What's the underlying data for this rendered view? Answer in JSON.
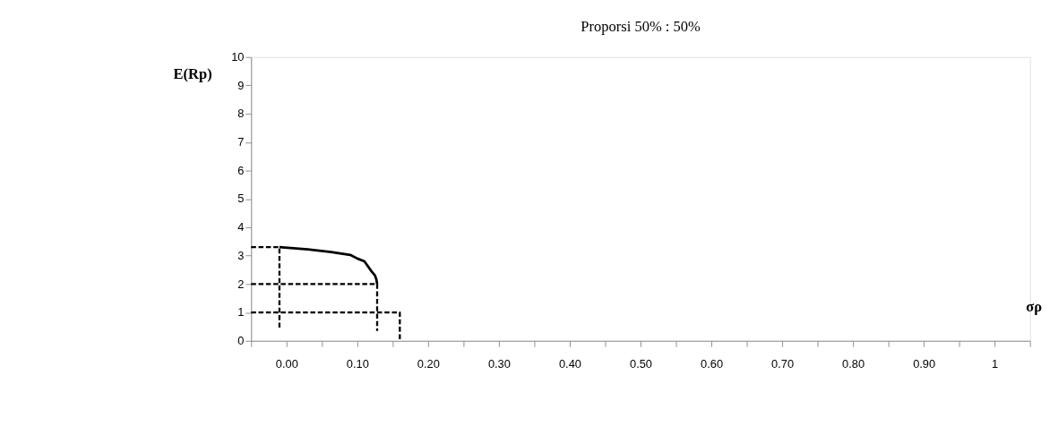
{
  "chart_data": {
    "type": "line",
    "title": "Proporsi 50% : 50%",
    "xlabel": "σρ",
    "ylabel": "E(Rp)",
    "xlim": [
      -0.05,
      1.05
    ],
    "ylim": [
      0,
      10
    ],
    "xticks": [
      {
        "value": -0.05,
        "label": null
      },
      {
        "value": 0,
        "label": "0.00"
      },
      {
        "value": 0.05,
        "label": null
      },
      {
        "value": 0.1,
        "label": "0.10"
      },
      {
        "value": 0.15,
        "label": null
      },
      {
        "value": 0.2,
        "label": "0.20"
      },
      {
        "value": 0.25,
        "label": null
      },
      {
        "value": 0.3,
        "label": "0.30"
      },
      {
        "value": 0.35,
        "label": null
      },
      {
        "value": 0.4,
        "label": "0.40"
      },
      {
        "value": 0.45,
        "label": null
      },
      {
        "value": 0.5,
        "label": "0.50"
      },
      {
        "value": 0.55,
        "label": null
      },
      {
        "value": 0.6,
        "label": "0.60"
      },
      {
        "value": 0.65,
        "label": null
      },
      {
        "value": 0.7,
        "label": "0.70"
      },
      {
        "value": 0.75,
        "label": null
      },
      {
        "value": 0.8,
        "label": "0.80"
      },
      {
        "value": 0.85,
        "label": null
      },
      {
        "value": 0.9,
        "label": "0.90"
      },
      {
        "value": 0.95,
        "label": null
      },
      {
        "value": 1,
        "label": "1"
      },
      {
        "value": 1.05,
        "label": null
      }
    ],
    "yticks": [
      0,
      1,
      2,
      3,
      4,
      5,
      6,
      7,
      8,
      9,
      10
    ],
    "grid": false,
    "marker": "none",
    "series": [
      {
        "color": "#000000",
        "line_style": "solid",
        "x": [
          -0.01,
          0.03,
          0.063,
          0.09,
          0.1,
          0.11,
          0.12,
          0.125,
          0.127,
          0.128
        ],
        "values": [
          3.3,
          3.22,
          3.13,
          3.03,
          2.9,
          2.8,
          2.45,
          2.3,
          2.15,
          2.0
        ]
      },
      {
        "color": "#000000",
        "line_style": "dashed",
        "x": [
          -0.05,
          -0.01,
          -0.01
        ],
        "values": [
          3.3,
          3.3,
          0.45
        ]
      },
      {
        "color": "#000000",
        "line_style": "dashed",
        "x": [
          -0.05,
          0.128,
          0.128
        ],
        "values": [
          2.0,
          2.0,
          0.35
        ]
      },
      {
        "color": "#000000",
        "line_style": "dashed",
        "x": [
          -0.05,
          0.16,
          0.16
        ],
        "values": [
          1.0,
          1.0,
          0.0
        ]
      }
    ]
  }
}
